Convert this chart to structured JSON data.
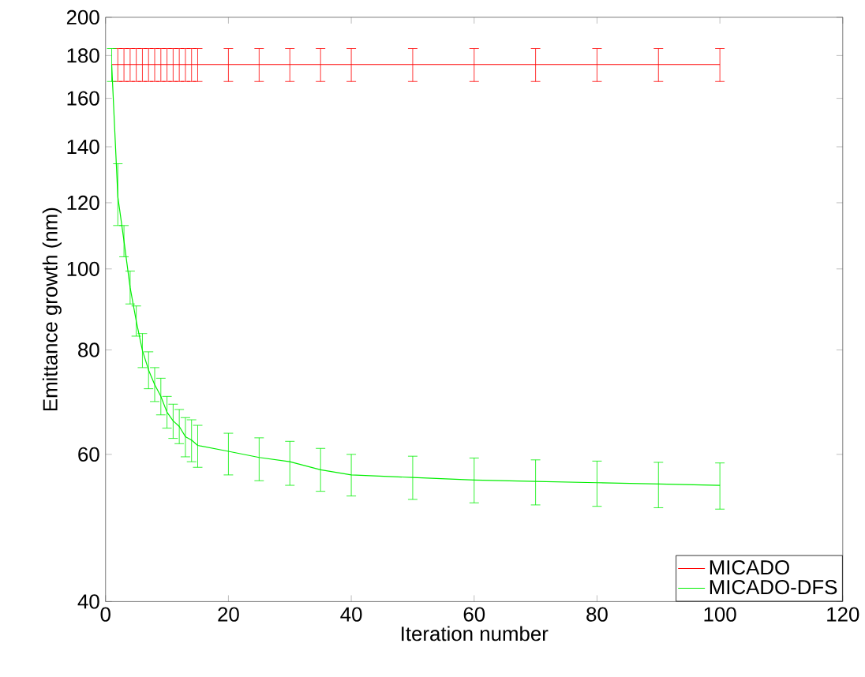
{
  "chart_data": {
    "type": "line",
    "xlabel": "Iteration number",
    "ylabel": "Emittance growth (nm)",
    "x": [
      1,
      2,
      3,
      4,
      5,
      6,
      7,
      8,
      9,
      10,
      11,
      12,
      13,
      14,
      15,
      20,
      25,
      30,
      35,
      40,
      50,
      60,
      70,
      80,
      90,
      100
    ],
    "series": [
      {
        "name": "MICADO",
        "color": "#ff0000",
        "values": [
          175.6,
          175.6,
          175.6,
          175.6,
          175.6,
          175.6,
          175.6,
          175.6,
          175.6,
          175.6,
          175.6,
          175.6,
          175.6,
          175.6,
          175.6,
          175.6,
          175.6,
          175.6,
          175.6,
          175.6,
          175.6,
          175.6,
          175.6,
          175.6,
          175.6,
          175.6
        ],
        "errors": [
          null,
          [
            167.6,
            183.5
          ],
          [
            167.6,
            183.5
          ],
          [
            167.6,
            183.5
          ],
          [
            167.6,
            183.5
          ],
          [
            167.6,
            183.5
          ],
          [
            167.6,
            183.5
          ],
          [
            167.6,
            183.5
          ],
          [
            167.6,
            183.5
          ],
          [
            167.6,
            183.5
          ],
          [
            167.6,
            183.5
          ],
          [
            167.6,
            183.5
          ],
          [
            167.6,
            183.5
          ],
          [
            167.6,
            183.5
          ],
          [
            167.6,
            183.5
          ],
          [
            167.6,
            183.5
          ],
          [
            167.6,
            183.5
          ],
          [
            167.6,
            183.5
          ],
          [
            167.6,
            183.5
          ],
          [
            167.6,
            183.5
          ],
          [
            167.6,
            183.5
          ],
          [
            167.6,
            183.5
          ],
          [
            167.6,
            183.5
          ],
          [
            167.6,
            183.5
          ],
          [
            167.6,
            183.5
          ],
          [
            167.6,
            183.5
          ]
        ]
      },
      {
        "name": "MICADO-DFS",
        "color": "#00ee00",
        "values": [
          175.6,
          122,
          108,
          95,
          86.6,
          79.9,
          75.7,
          72.7,
          70.4,
          67.4,
          65.8,
          64.8,
          63,
          62.4,
          61.5,
          60.5,
          59.5,
          58.8,
          57.5,
          56.7,
          56.3,
          55.9,
          55.7,
          55.5,
          55.3,
          55.1
        ],
        "errors": [
          [
            167.6,
            183.5
          ],
          [
            112.7,
            133.6
          ],
          [
            103.4,
            112.7
          ],
          [
            90.8,
            99.4
          ],
          [
            83.1,
            90.3
          ],
          [
            76.2,
            83.7
          ],
          [
            71.9,
            79.6
          ],
          [
            69.4,
            76.2
          ],
          [
            66.9,
            74.0
          ],
          [
            64.5,
            70.4
          ],
          [
            62.7,
            68.9
          ],
          [
            61.8,
            67.9
          ],
          [
            59.6,
            66.4
          ],
          [
            58.8,
            66.0
          ],
          [
            57.9,
            65.0
          ],
          [
            56.7,
            63.6
          ],
          [
            55.8,
            62.8
          ],
          [
            55.1,
            62.2
          ],
          [
            54.2,
            61.0
          ],
          [
            53.5,
            60.0
          ],
          [
            53.0,
            59.7
          ],
          [
            52.5,
            59.4
          ],
          [
            52.2,
            59.1
          ],
          [
            52.0,
            58.9
          ],
          [
            51.8,
            58.7
          ],
          [
            51.6,
            58.6
          ]
        ]
      }
    ],
    "xlim": [
      0,
      120
    ],
    "xticks": [
      0,
      20,
      40,
      60,
      80,
      100,
      120
    ],
    "ylim": [
      40,
      200
    ],
    "yticks": [
      40,
      60,
      80,
      100,
      120,
      140,
      160,
      180,
      200
    ],
    "log": "y",
    "grid": false,
    "legend": "bottom right",
    "marker": "none",
    "line_style": "solid"
  }
}
